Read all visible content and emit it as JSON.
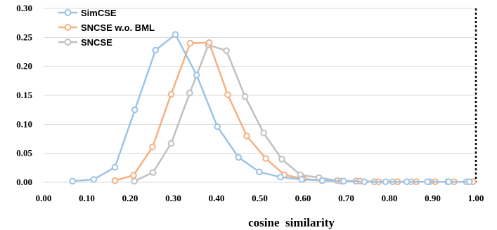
{
  "chart_data": {
    "type": "line",
    "title": "",
    "xlabel": "cosine  similarity",
    "ylabel": "",
    "xlim": [
      0.0,
      1.0
    ],
    "ylim": [
      0.0,
      0.3
    ],
    "x_ticks": [
      "0.00",
      "0.10",
      "0.20",
      "0.30",
      "0.40",
      "0.50",
      "0.60",
      "0.70",
      "0.80",
      "0.90",
      "1.00"
    ],
    "y_ticks": [
      "0.00",
      "0.05",
      "0.10",
      "0.15",
      "0.20",
      "0.25",
      "0.30"
    ],
    "grid": "horizontal",
    "legend_position": "top-left",
    "series": [
      {
        "name": "SimCSE",
        "color": "#9dc3e6",
        "x": [
          0.067,
          0.116,
          0.165,
          0.211,
          0.259,
          0.305,
          0.354,
          0.402,
          0.451,
          0.499,
          0.548,
          0.597,
          0.645,
          0.694,
          0.742,
          0.791,
          0.84,
          0.888,
          0.937,
          0.985
        ],
        "y": [
          0.002,
          0.005,
          0.026,
          0.125,
          0.228,
          0.255,
          0.185,
          0.096,
          0.043,
          0.018,
          0.009,
          0.005,
          0.003,
          0.002,
          0.001,
          0.001,
          0.001,
          0.001,
          0.001,
          0.001
        ]
      },
      {
        "name": "SNCSE w.o. BML",
        "color": "#f4b183",
        "x": [
          0.165,
          0.208,
          0.252,
          0.295,
          0.339,
          0.383,
          0.426,
          0.47,
          0.514,
          0.557,
          0.601,
          0.644,
          0.688,
          0.732,
          0.775,
          0.819,
          0.862,
          0.906,
          0.95,
          0.993
        ],
        "y": [
          0.003,
          0.012,
          0.061,
          0.152,
          0.24,
          0.241,
          0.151,
          0.08,
          0.041,
          0.013,
          0.006,
          0.003,
          0.002,
          0.002,
          0.001,
          0.001,
          0.001,
          0.001,
          0.001,
          0.001
        ]
      },
      {
        "name": "SNCSE",
        "color": "#c0c0c0",
        "x": [
          0.21,
          0.253,
          0.295,
          0.338,
          0.381,
          0.423,
          0.466,
          0.509,
          0.551,
          0.594,
          0.637,
          0.679,
          0.722,
          0.765,
          0.807,
          0.85,
          0.893,
          0.935,
          0.978,
          0.993
        ],
        "y": [
          0.002,
          0.017,
          0.067,
          0.154,
          0.237,
          0.227,
          0.148,
          0.085,
          0.04,
          0.013,
          0.008,
          0.003,
          0.002,
          0.001,
          0.001,
          0.001,
          0.001,
          0.001,
          0.001,
          0.001
        ]
      }
    ]
  }
}
